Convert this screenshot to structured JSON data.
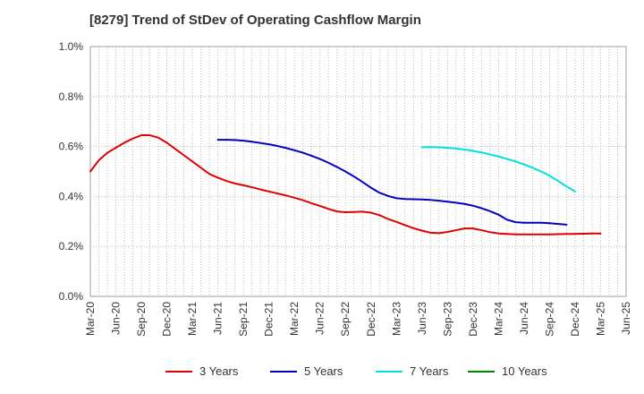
{
  "chart_data": {
    "type": "line",
    "title": "[8279]  Trend of StDev of Operating Cashflow Margin",
    "xlabel": "",
    "ylabel": "",
    "x_ticks": [
      "Mar-20",
      "Jun-20",
      "Sep-20",
      "Dec-20",
      "Mar-21",
      "Jun-21",
      "Sep-21",
      "Dec-21",
      "Mar-22",
      "Jun-22",
      "Sep-22",
      "Dec-22",
      "Mar-23",
      "Jun-23",
      "Sep-23",
      "Dec-23",
      "Mar-24",
      "Jun-24",
      "Sep-24",
      "Dec-24",
      "Mar-25",
      "Jun-25"
    ],
    "y_ticks": [
      "0.0%",
      "0.2%",
      "0.4%",
      "0.6%",
      "0.8%",
      "1.0%"
    ],
    "ylim": [
      0,
      1.0
    ],
    "y_unit": "%",
    "grid": true,
    "legend_position": "bottom",
    "series": [
      {
        "name": "3 Years",
        "color": "#e00000",
        "points": [
          [
            "Mar-20",
            0.5
          ],
          [
            "Apr-20",
            0.545
          ],
          [
            "May-20",
            0.575
          ],
          [
            "Jun-20",
            0.595
          ],
          [
            "Jul-20",
            0.615
          ],
          [
            "Aug-20",
            0.632
          ],
          [
            "Sep-20",
            0.645
          ],
          [
            "Oct-20",
            0.645
          ],
          [
            "Nov-20",
            0.635
          ],
          [
            "Dec-20",
            0.615
          ],
          [
            "Jan-21",
            0.59
          ],
          [
            "Feb-21",
            0.565
          ],
          [
            "Mar-21",
            0.54
          ],
          [
            "Apr-21",
            0.515
          ],
          [
            "May-21",
            0.49
          ],
          [
            "Jun-21",
            0.475
          ],
          [
            "Jul-21",
            0.462
          ],
          [
            "Aug-21",
            0.452
          ],
          [
            "Sep-21",
            0.445
          ],
          [
            "Oct-21",
            0.437
          ],
          [
            "Nov-21",
            0.428
          ],
          [
            "Dec-21",
            0.42
          ],
          [
            "Jan-22",
            0.412
          ],
          [
            "Feb-22",
            0.404
          ],
          [
            "Mar-22",
            0.395
          ],
          [
            "Apr-22",
            0.385
          ],
          [
            "May-22",
            0.373
          ],
          [
            "Jun-22",
            0.362
          ],
          [
            "Jul-22",
            0.35
          ],
          [
            "Aug-22",
            0.34
          ],
          [
            "Sep-22",
            0.337
          ],
          [
            "Oct-22",
            0.338
          ],
          [
            "Nov-22",
            0.339
          ],
          [
            "Dec-22",
            0.335
          ],
          [
            "Jan-23",
            0.325
          ],
          [
            "Feb-23",
            0.31
          ],
          [
            "Mar-23",
            0.298
          ],
          [
            "Apr-23",
            0.285
          ],
          [
            "May-23",
            0.273
          ],
          [
            "Jun-23",
            0.263
          ],
          [
            "Jul-23",
            0.255
          ],
          [
            "Aug-23",
            0.253
          ],
          [
            "Sep-23",
            0.258
          ],
          [
            "Oct-23",
            0.265
          ],
          [
            "Nov-23",
            0.272
          ],
          [
            "Dec-23",
            0.272
          ],
          [
            "Jan-24",
            0.265
          ],
          [
            "Feb-24",
            0.257
          ],
          [
            "Mar-24",
            0.252
          ],
          [
            "Apr-24",
            0.25
          ],
          [
            "May-24",
            0.248
          ],
          [
            "Jun-24",
            0.248
          ],
          [
            "Jul-24",
            0.248
          ],
          [
            "Aug-24",
            0.248
          ],
          [
            "Sep-24",
            0.248
          ],
          [
            "Oct-24",
            0.249
          ],
          [
            "Nov-24",
            0.25
          ],
          [
            "Dec-24",
            0.25
          ],
          [
            "Jan-25",
            0.251
          ],
          [
            "Feb-25",
            0.252
          ],
          [
            "Mar-25",
            0.252
          ]
        ]
      },
      {
        "name": "5 Years",
        "color": "#0000c0",
        "points": [
          [
            "Jun-21",
            0.627
          ],
          [
            "Jul-21",
            0.627
          ],
          [
            "Aug-21",
            0.626
          ],
          [
            "Sep-21",
            0.623
          ],
          [
            "Oct-21",
            0.619
          ],
          [
            "Nov-21",
            0.614
          ],
          [
            "Dec-21",
            0.609
          ],
          [
            "Jan-22",
            0.602
          ],
          [
            "Feb-22",
            0.594
          ],
          [
            "Mar-22",
            0.585
          ],
          [
            "Apr-22",
            0.575
          ],
          [
            "May-22",
            0.563
          ],
          [
            "Jun-22",
            0.55
          ],
          [
            "Jul-22",
            0.535
          ],
          [
            "Aug-22",
            0.518
          ],
          [
            "Sep-22",
            0.5
          ],
          [
            "Oct-22",
            0.48
          ],
          [
            "Nov-22",
            0.458
          ],
          [
            "Dec-22",
            0.435
          ],
          [
            "Jan-23",
            0.415
          ],
          [
            "Feb-23",
            0.402
          ],
          [
            "Mar-23",
            0.393
          ],
          [
            "Apr-23",
            0.39
          ],
          [
            "May-23",
            0.389
          ],
          [
            "Jun-23",
            0.388
          ],
          [
            "Jul-23",
            0.386
          ],
          [
            "Aug-23",
            0.383
          ],
          [
            "Sep-23",
            0.379
          ],
          [
            "Oct-23",
            0.375
          ],
          [
            "Nov-23",
            0.37
          ],
          [
            "Dec-23",
            0.363
          ],
          [
            "Jan-24",
            0.353
          ],
          [
            "Feb-24",
            0.341
          ],
          [
            "Mar-24",
            0.327
          ],
          [
            "Apr-24",
            0.307
          ],
          [
            "May-24",
            0.297
          ],
          [
            "Jun-24",
            0.295
          ],
          [
            "Jul-24",
            0.295
          ],
          [
            "Aug-24",
            0.295
          ],
          [
            "Sep-24",
            0.293
          ],
          [
            "Oct-24",
            0.29
          ],
          [
            "Nov-24",
            0.287
          ]
        ]
      },
      {
        "name": "7 Years",
        "color": "#00e0e0",
        "points": [
          [
            "Jun-23",
            0.597
          ],
          [
            "Jul-23",
            0.598
          ],
          [
            "Aug-23",
            0.597
          ],
          [
            "Sep-23",
            0.595
          ],
          [
            "Oct-23",
            0.592
          ],
          [
            "Nov-23",
            0.588
          ],
          [
            "Dec-23",
            0.582
          ],
          [
            "Jan-24",
            0.576
          ],
          [
            "Feb-24",
            0.568
          ],
          [
            "Mar-24",
            0.56
          ],
          [
            "Apr-24",
            0.55
          ],
          [
            "May-24",
            0.54
          ],
          [
            "Jun-24",
            0.528
          ],
          [
            "Jul-24",
            0.515
          ],
          [
            "Aug-24",
            0.5
          ],
          [
            "Sep-24",
            0.483
          ],
          [
            "Oct-24",
            0.462
          ],
          [
            "Nov-24",
            0.44
          ],
          [
            "Dec-24",
            0.42
          ]
        ]
      },
      {
        "name": "10 Years",
        "color": "#008000",
        "points": []
      }
    ]
  }
}
